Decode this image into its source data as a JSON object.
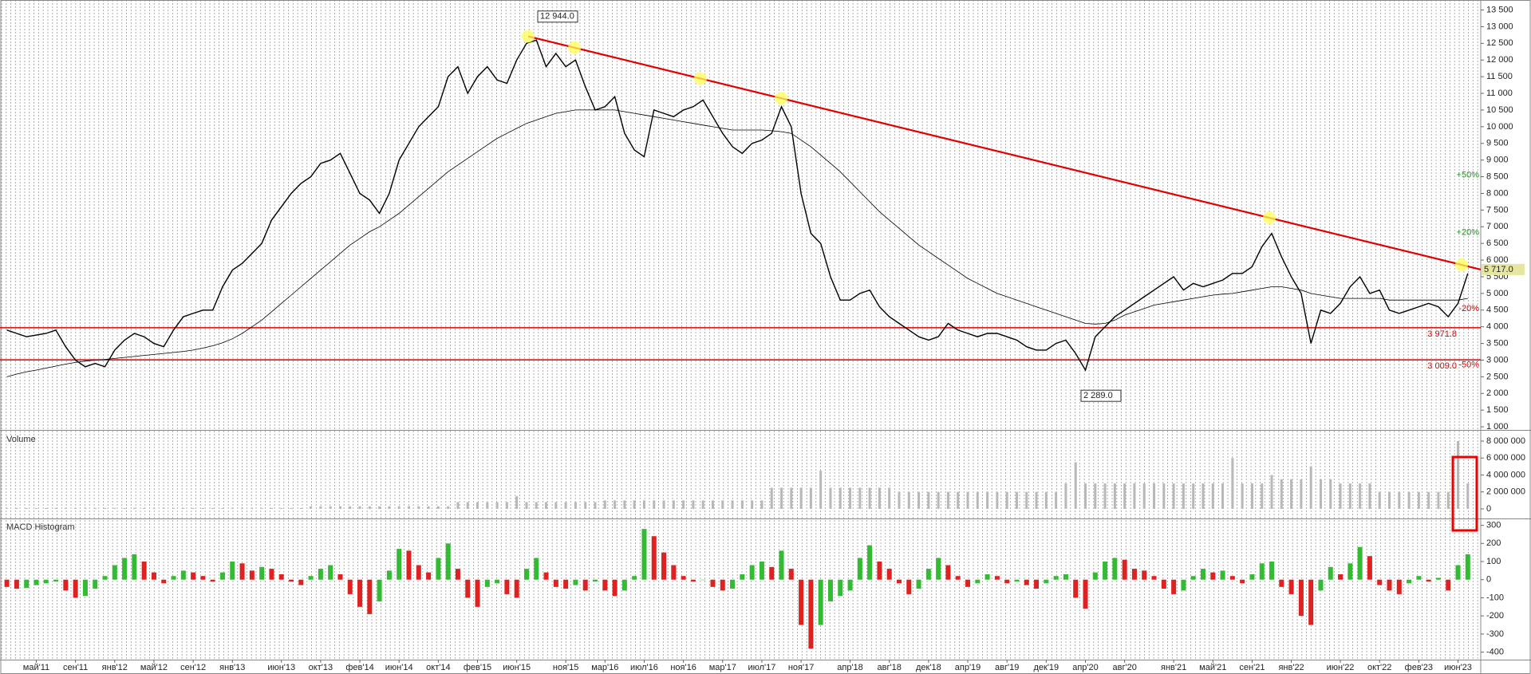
{
  "chart_data": [
    {
      "type": "line",
      "categories": [
        null,
        null,
        null,
        "май'11",
        null,
        null,
        null,
        "сен'11",
        null,
        null,
        null,
        "янв'12",
        null,
        null,
        null,
        "май'12",
        null,
        null,
        null,
        "сен'12",
        null,
        null,
        null,
        "янв'13",
        null,
        null,
        null,
        null,
        "июн'13",
        null,
        null,
        null,
        "окт'13",
        null,
        null,
        null,
        "фев'14",
        null,
        null,
        null,
        "июн'14",
        null,
        null,
        null,
        "окт'14",
        null,
        null,
        null,
        "фев'15",
        null,
        null,
        null,
        "июн'15",
        null,
        null,
        null,
        null,
        "ноя'15",
        null,
        null,
        null,
        "мар'16",
        null,
        null,
        null,
        "июл'16",
        null,
        null,
        null,
        "ноя'16",
        null,
        null,
        null,
        "мар'17",
        null,
        null,
        null,
        "июл'17",
        null,
        null,
        null,
        "ноя'17",
        null,
        null,
        null,
        null,
        "апр'18",
        null,
        null,
        null,
        "авг'18",
        null,
        null,
        null,
        "дек'18",
        null,
        null,
        null,
        "апр'19",
        null,
        null,
        null,
        "авг'19",
        null,
        null,
        null,
        "дек'19",
        null,
        null,
        null,
        "апр'20",
        null,
        null,
        null,
        "авг'20",
        null,
        null,
        null,
        null,
        "янв'21",
        null,
        null,
        null,
        "май'21",
        null,
        null,
        null,
        "сен'21",
        null,
        null,
        null,
        "янв'22",
        null,
        null,
        null,
        null,
        "июн'22",
        null,
        null,
        null,
        "окт'22",
        null,
        null,
        null,
        "фев'23",
        null,
        null,
        null,
        "июн'23",
        null
      ],
      "series": [
        {
          "color": "#000000",
          "width": 1.4,
          "values": [
            3900,
            3800,
            3700,
            3750,
            3800,
            3900,
            3400,
            3000,
            2800,
            2900,
            2800,
            3300,
            3600,
            3800,
            3700,
            3500,
            3400,
            3900,
            4300,
            4400,
            4500,
            4500,
            5200,
            5700,
            5900,
            6200,
            6500,
            7200,
            7600,
            8000,
            8300,
            8500,
            8900,
            9000,
            9200,
            8600,
            8000,
            7800,
            7400,
            8000,
            9000,
            9500,
            10000,
            10300,
            10600,
            11500,
            11800,
            11000,
            11500,
            11800,
            11400,
            11300,
            12000,
            12500,
            12600,
            11800,
            12200,
            11800,
            12000,
            11200,
            10500,
            10600,
            10900,
            9800,
            9300,
            9100,
            10500,
            10400,
            10300,
            10500,
            10600,
            10800,
            10300,
            9800,
            9400,
            9200,
            9500,
            9600,
            9800,
            10600,
            10000,
            8000,
            6800,
            6500,
            5500,
            4800,
            4800,
            5000,
            5100,
            4600,
            4300,
            4100,
            3900,
            3700,
            3600,
            3700,
            4100,
            3900,
            3800,
            3700,
            3800,
            3800,
            3700,
            3600,
            3400,
            3300,
            3300,
            3500,
            3600,
            3200,
            2700,
            3700,
            4000,
            4300,
            4500,
            4700,
            4900,
            5100,
            5300,
            5500,
            5100,
            5300,
            5200,
            5300,
            5400,
            5600,
            5600,
            5800,
            6400,
            6800,
            6100,
            5500,
            5000,
            3500,
            4500,
            4400,
            4700,
            5200,
            5500,
            5000,
            5100,
            4500,
            4400,
            4500,
            4600,
            4700,
            4600,
            4300,
            4700,
            5600
          ]
        },
        {
          "color": "#000000",
          "width": 0.8,
          "values": [
            2500,
            2580,
            2650,
            2700,
            2760,
            2820,
            2880,
            2930,
            2970,
            3000,
            3020,
            3050,
            3080,
            3110,
            3140,
            3170,
            3200,
            3230,
            3260,
            3300,
            3360,
            3430,
            3520,
            3640,
            3800,
            4000,
            4200,
            4450,
            4700,
            4950,
            5200,
            5450,
            5700,
            5950,
            6200,
            6450,
            6650,
            6850,
            7000,
            7200,
            7400,
            7650,
            7900,
            8150,
            8400,
            8650,
            8850,
            9050,
            9250,
            9450,
            9650,
            9800,
            9950,
            10100,
            10200,
            10300,
            10400,
            10450,
            10500,
            10500,
            10500,
            10500,
            10500,
            10450,
            10400,
            10350,
            10300,
            10250,
            10200,
            10150,
            10100,
            10050,
            10000,
            9950,
            9900,
            9900,
            9900,
            9900,
            9880,
            9850,
            9800,
            9600,
            9400,
            9150,
            8900,
            8650,
            8350,
            8050,
            7750,
            7450,
            7200,
            6950,
            6700,
            6450,
            6250,
            6050,
            5850,
            5650,
            5450,
            5300,
            5150,
            5000,
            4900,
            4800,
            4700,
            4600,
            4500,
            4400,
            4300,
            4200,
            4100,
            4080,
            4100,
            4200,
            4350,
            4450,
            4550,
            4650,
            4700,
            4750,
            4800,
            4850,
            4900,
            4950,
            4980,
            5000,
            5050,
            5100,
            5150,
            5200,
            5200,
            5150,
            5100,
            5000,
            4950,
            4900,
            4850,
            4850,
            4850,
            4850,
            4850,
            4800,
            4800,
            4800,
            4800,
            4800,
            4800,
            4800,
            4800,
            4850
          ]
        }
      ],
      "ylim": [
        930,
        13800
      ],
      "yticks": [
        {
          "value": 1000,
          "label": "1 000"
        },
        {
          "value": 1500,
          "label": "1 500"
        },
        {
          "value": 2000,
          "label": "2 000"
        },
        {
          "value": 2500,
          "label": "2 500"
        },
        {
          "value": 3000,
          "label": "3 000"
        },
        {
          "value": 3500,
          "label": "3 500"
        },
        {
          "value": 4000,
          "label": "4 000"
        },
        {
          "value": 4500,
          "label": "4 500"
        },
        {
          "value": 5000,
          "label": "5 000"
        },
        {
          "value": 5500,
          "label": "5 500"
        },
        {
          "value": 6000,
          "label": "6 000"
        },
        {
          "value": 6500,
          "label": "6 500"
        },
        {
          "value": 7000,
          "label": "7 000"
        },
        {
          "value": 7500,
          "label": "7 500"
        },
        {
          "value": 8000,
          "label": "8 000"
        },
        {
          "value": 8500,
          "label": "8 500"
        },
        {
          "value": 9000,
          "label": "9 000"
        },
        {
          "value": 9500,
          "label": "9 500"
        },
        {
          "value": 10000,
          "label": "10 000"
        },
        {
          "value": 10500,
          "label": "10 500"
        },
        {
          "value": 11000,
          "label": "11 000"
        },
        {
          "value": 11500,
          "label": "11 500"
        },
        {
          "value": 12000,
          "label": "12 000"
        },
        {
          "value": 12500,
          "label": "12 500"
        },
        {
          "value": 13000,
          "label": "13 000"
        },
        {
          "value": 13500,
          "label": "13 500"
        }
      ],
      "levels": [
        {
          "value": 3971.8,
          "label": "3 971.8"
        },
        {
          "value": 3009.0,
          "label": "3 009.0"
        }
      ],
      "level_color": "#dd0000",
      "percent_labels": [
        {
          "value": 8550,
          "label": "+50%",
          "color": "#229922"
        },
        {
          "value": 6830,
          "label": "+20%",
          "color": "#229922"
        },
        {
          "value": 4540,
          "label": "-20%",
          "color": "#dd0000"
        },
        {
          "value": 2850,
          "label": "-50%",
          "color": "#dd0000"
        }
      ],
      "annotations": [
        {
          "value": 12944.0,
          "label": "12 944.0",
          "position": "above"
        },
        {
          "value": 2289.0,
          "label": "2 289.0",
          "position": "below"
        }
      ],
      "trendline": {
        "start": 12710,
        "end": {
          "value": 5717.0,
          "label": "5 717.0"
        },
        "color": "#e00000"
      }
    },
    {
      "type": "bar",
      "title": "Volume",
      "color": "#b8b8b8",
      "values": [
        100000,
        100000,
        100000,
        100000,
        100000,
        100000,
        100000,
        100000,
        100000,
        100000,
        100000,
        100000,
        100000,
        100000,
        100000,
        100000,
        100000,
        100000,
        100000,
        100000,
        100000,
        100000,
        100000,
        100000,
        100000,
        100000,
        100000,
        100000,
        100000,
        100000,
        100000,
        300000,
        300000,
        300000,
        300000,
        300000,
        300000,
        300000,
        300000,
        300000,
        300000,
        300000,
        300000,
        300000,
        300000,
        300000,
        800000,
        800000,
        800000,
        800000,
        800000,
        800000,
        1500000,
        800000,
        800000,
        800000,
        800000,
        800000,
        800000,
        800000,
        800000,
        1000000,
        1000000,
        1000000,
        1000000,
        1000000,
        1000000,
        1000000,
        1000000,
        1000000,
        1000000,
        1000000,
        1000000,
        1000000,
        1000000,
        1000000,
        1000000,
        1000000,
        2500000,
        2500000,
        2500000,
        2500000,
        2500000,
        4500000,
        2500000,
        2500000,
        2500000,
        2500000,
        2500000,
        2500000,
        2500000,
        2000000,
        2000000,
        2000000,
        2000000,
        2000000,
        2000000,
        2000000,
        2000000,
        2000000,
        2000000,
        2000000,
        2000000,
        2000000,
        2000000,
        2000000,
        2000000,
        2000000,
        3000000,
        5500000,
        3000000,
        3000000,
        3000000,
        3000000,
        3000000,
        3000000,
        3000000,
        3000000,
        3000000,
        3000000,
        3000000,
        3000000,
        3000000,
        3000000,
        3000000,
        6000000,
        3000000,
        3000000,
        3000000,
        4000000,
        3500000,
        3500000,
        3500000,
        5000000,
        3500000,
        3500000,
        3000000,
        3000000,
        3000000,
        3000000,
        2000000,
        2000000,
        2000000,
        2000000,
        2000000,
        2000000,
        2000000,
        2000000,
        8000000,
        3000000
      ],
      "ylim": [
        -1040000,
        9130000
      ],
      "yticks": [
        0,
        {
          "value": 2000000,
          "label": "2 000 000"
        },
        {
          "value": 4000000,
          "label": "4 000 000"
        },
        {
          "value": 6000000,
          "label": "6 000 000"
        },
        {
          "value": 8000000,
          "label": "8 000 000"
        }
      ]
    },
    {
      "type": "histogram-bars",
      "title": "MACD Histogram",
      "up_color": "#33bb33",
      "down_color": "#dd2222",
      "values": [
        -40,
        -50,
        -45,
        -30,
        -20,
        -10,
        -60,
        -100,
        -90,
        -50,
        20,
        80,
        120,
        140,
        100,
        40,
        -20,
        20,
        50,
        40,
        20,
        -10,
        40,
        100,
        90,
        50,
        70,
        60,
        30,
        -10,
        -30,
        20,
        60,
        80,
        30,
        -80,
        -150,
        -190,
        -120,
        50,
        170,
        160,
        80,
        40,
        120,
        200,
        60,
        -100,
        -150,
        -40,
        -20,
        -80,
        -100,
        60,
        120,
        40,
        -40,
        -50,
        -30,
        -60,
        -10,
        -60,
        -90,
        -60,
        20,
        280,
        240,
        150,
        80,
        20,
        -10,
        0,
        -40,
        -60,
        -50,
        30,
        80,
        100,
        70,
        160,
        60,
        -250,
        -380,
        -250,
        -120,
        -90,
        -60,
        120,
        190,
        100,
        60,
        -20,
        -80,
        -50,
        60,
        120,
        80,
        20,
        -40,
        -20,
        30,
        20,
        -20,
        -10,
        -30,
        -50,
        -20,
        20,
        30,
        -100,
        -160,
        40,
        100,
        120,
        110,
        60,
        50,
        20,
        -50,
        -80,
        -60,
        20,
        60,
        40,
        50,
        20,
        -20,
        30,
        90,
        100,
        -40,
        -80,
        -200,
        -250,
        -60,
        70,
        30,
        90,
        180,
        130,
        -30,
        -60,
        -80,
        -20,
        20,
        -10,
        10,
        -60,
        80,
        140
      ],
      "ylim": [
        -437,
        329
      ],
      "yticks": [
        300,
        200,
        100,
        0,
        -100,
        -200,
        -300,
        -400
      ]
    }
  ]
}
